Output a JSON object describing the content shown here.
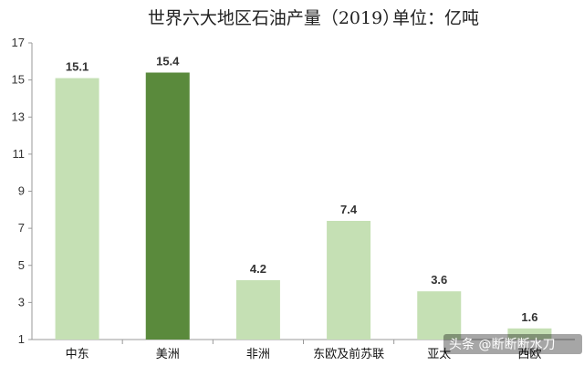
{
  "chart_data": {
    "type": "bar",
    "title": "世界六大地区石油产量（2019）",
    "unit_label": "单位：亿吨",
    "categories": [
      "中东",
      "美洲",
      "非洲",
      "东欧及前苏联",
      "亚太",
      "西欧"
    ],
    "values": [
      15.1,
      15.4,
      4.2,
      7.4,
      3.6,
      1.6
    ],
    "data_labels": [
      "15.1",
      "15.4",
      "4.2",
      "7.4",
      "3.6",
      "1.6"
    ],
    "highlight_index": 1,
    "ylim": [
      1,
      17
    ],
    "yticks": [
      1,
      3,
      5,
      7,
      9,
      11,
      13,
      15,
      17
    ],
    "grid": false,
    "legend": "none",
    "colors": {
      "bar": "#c5e0b4",
      "highlight": "#5a8a3c"
    }
  },
  "watermark": {
    "text": "头条 @断断断水刀"
  }
}
